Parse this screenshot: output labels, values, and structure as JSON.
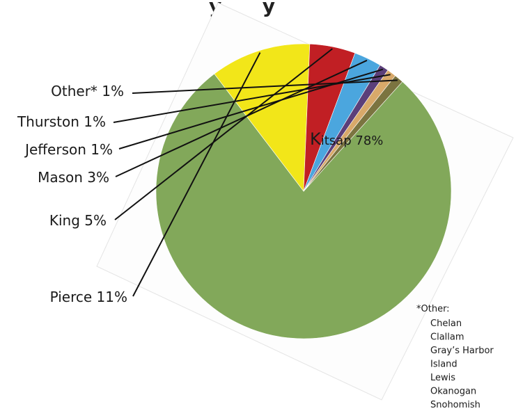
{
  "chart_data": {
    "type": "pie",
    "title_fragment": "y      y",
    "slices": [
      {
        "label": "Kitsap",
        "value": 78,
        "display": "78%",
        "color": "#82a85a"
      },
      {
        "label": "Pierce",
        "value": 11,
        "display": "11%",
        "color": "#f2e619"
      },
      {
        "label": "King",
        "value": 5,
        "display": "5%",
        "color": "#c11f24"
      },
      {
        "label": "Mason",
        "value": 3,
        "display": "3%",
        "color": "#4ba6de"
      },
      {
        "label": "Jefferson",
        "value": 1,
        "display": "1%",
        "color": "#5b3f7a"
      },
      {
        "label": "Thurston",
        "value": 1,
        "display": "1%",
        "color": "#d8a96a"
      },
      {
        "label": "Other*",
        "value": 1,
        "display": "1%",
        "color": "#7b7440"
      }
    ],
    "footnote": {
      "heading": "*Other:",
      "items": [
        "Chelan",
        "Clallam",
        "Gray’s Harbor",
        "Island",
        "Lewis",
        "Okanogan",
        "Snohomish"
      ]
    }
  }
}
